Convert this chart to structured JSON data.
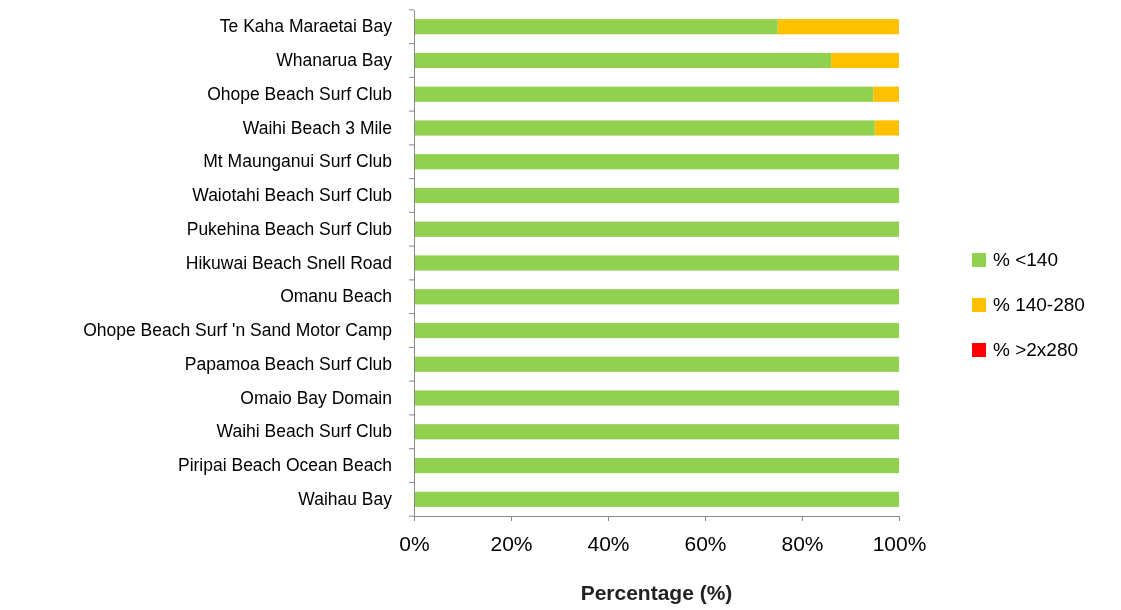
{
  "chart_data": {
    "type": "bar",
    "orientation": "horizontal",
    "stacked": true,
    "xlabel": "Percentage (%)",
    "categories": [
      "Te Kaha Maraetai Bay",
      "Whanarua Bay",
      "Ohope Beach Surf Club",
      "Waihi Beach 3 Mile",
      "Mt Maunganui Surf Club",
      "Waiotahi Beach Surf Club",
      "Pukehina Beach Surf Club ",
      "Hikuwai Beach Snell Road",
      "Omanu Beach",
      "Ohope Beach Surf 'n Sand Motor Camp",
      "Papamoa Beach Surf Club",
      "Omaio Bay Domain",
      "Waihi Beach Surf Club",
      "Piripai Beach Ocean Beach",
      "Waihau Bay"
    ],
    "series": [
      {
        "name": "% <140",
        "color": "#92d050",
        "values": [
          75,
          86,
          94.7,
          95,
          100,
          100,
          100,
          100,
          100,
          100,
          100,
          100,
          100,
          100,
          100
        ]
      },
      {
        "name": "% 140-280",
        "color": "#ffc000",
        "values": [
          25,
          14,
          5.3,
          5,
          0,
          0,
          0,
          0,
          0,
          0,
          0,
          0,
          0,
          0,
          0
        ]
      },
      {
        "name": "% >2x280",
        "color": "#ff0000",
        "values": [
          0,
          0,
          0,
          0,
          0,
          0,
          0,
          0,
          0,
          0,
          0,
          0,
          0,
          0,
          0
        ]
      }
    ],
    "xlim": [
      0,
      100
    ],
    "xticks": [
      {
        "value": 0,
        "label": "0%"
      },
      {
        "value": 20,
        "label": "20%"
      },
      {
        "value": 40,
        "label": "40%"
      },
      {
        "value": 60,
        "label": "60%"
      },
      {
        "value": 80,
        "label": "80%"
      },
      {
        "value": 100,
        "label": "100%"
      }
    ],
    "legend": "right",
    "grid": false
  }
}
